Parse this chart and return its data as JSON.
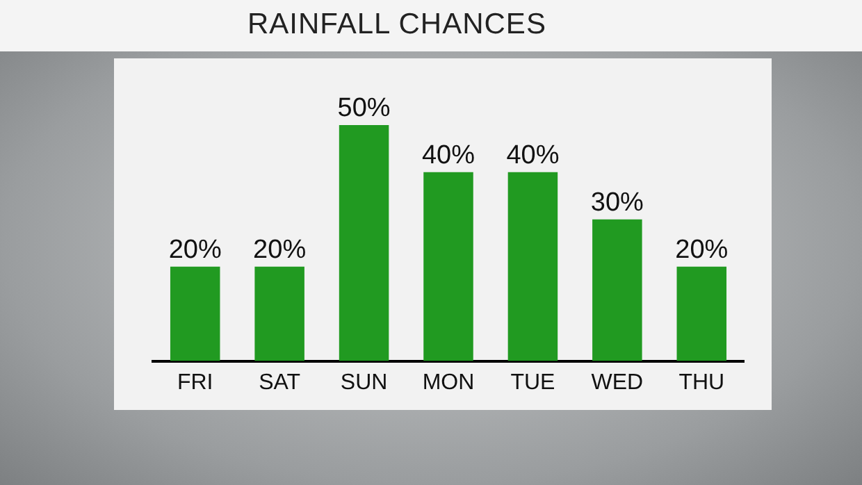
{
  "chart_data": {
    "type": "bar",
    "title": "RAINFALL CHANCES",
    "categories": [
      "FRI",
      "SAT",
      "SUN",
      "MON",
      "TUE",
      "WED",
      "THU"
    ],
    "values": [
      20,
      20,
      50,
      40,
      40,
      30,
      20
    ],
    "value_labels": [
      "20%",
      "20%",
      "50%",
      "40%",
      "40%",
      "30%",
      "20%"
    ],
    "color": "#219a21",
    "grid": false,
    "legend": false
  }
}
